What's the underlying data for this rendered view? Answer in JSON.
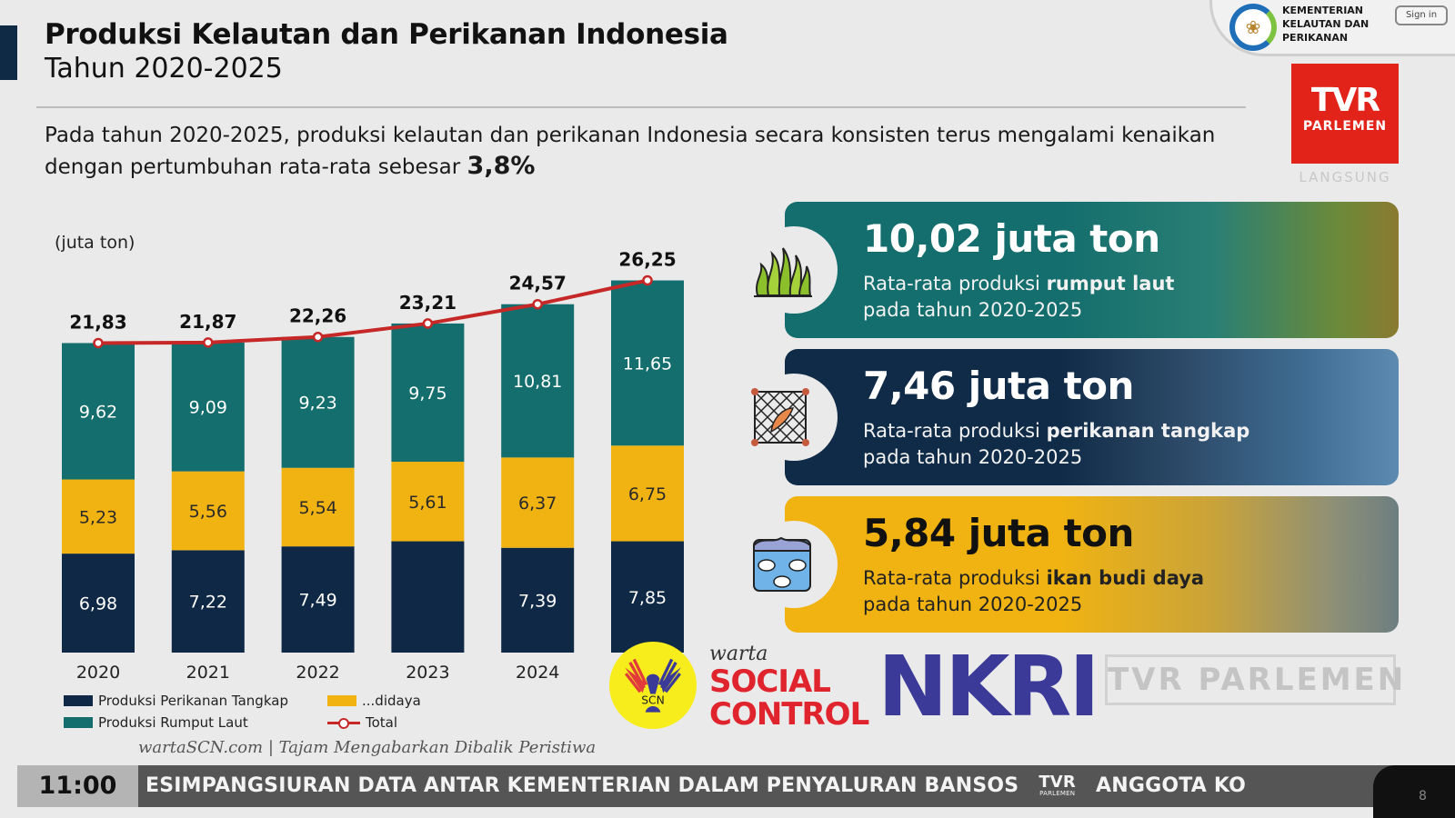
{
  "header": {
    "title": "Produksi Kelautan dan Perikanan Indonesia",
    "subtitle": "Tahun 2020-2025",
    "ministry_name": "KEMENTERIAN KELAUTAN DAN PERIKANAN",
    "sign_in": "Sign in"
  },
  "broadcaster": {
    "logo_main": "TVR",
    "logo_sub": "PARLEMEN",
    "live": "LANGSUNG"
  },
  "description": {
    "text": "Pada tahun 2020-2025, produksi kelautan dan perikanan Indonesia secara konsisten terus mengalami kenaikan dengan pertumbuhan rata-rata sebesar",
    "growth": "3,8%"
  },
  "chart_data": {
    "type": "bar",
    "stacked": true,
    "title": "Produksi Kelautan dan Perikanan Indonesia Tahun 2020-2025",
    "ylabel": "(juta ton)",
    "xlabel": "",
    "categories": [
      "2020",
      "2021",
      "2022",
      "2023",
      "2024",
      "2025"
    ],
    "series": [
      {
        "name": "Produksi Perikanan Tangkap",
        "color": "#0f2845",
        "values": [
          6.98,
          7.22,
          7.49,
          7.85,
          7.39,
          7.85
        ],
        "labels": [
          "6,98",
          "7,22",
          "7,49",
          "",
          "7,39",
          "7,85"
        ]
      },
      {
        "name": "Produksi Perikanan Budidaya",
        "color": "#f0b312",
        "values": [
          5.23,
          5.56,
          5.54,
          5.61,
          6.37,
          6.75
        ],
        "labels": [
          "5,23",
          "5,56",
          "5,54",
          "5,61",
          "6,37",
          "6,75"
        ]
      },
      {
        "name": "Produksi Rumput Laut",
        "color": "#146e6d",
        "values": [
          9.62,
          9.09,
          9.23,
          9.75,
          10.81,
          11.65
        ],
        "labels": [
          "9,62",
          "9,09",
          "9,23",
          "9,75",
          "10,81",
          "11,65"
        ]
      }
    ],
    "total": {
      "name": "Total",
      "color": "#c62828",
      "values": [
        21.83,
        21.87,
        22.26,
        23.21,
        24.57,
        26.25
      ],
      "labels": [
        "21,83",
        "21,87",
        "22,26",
        "23,21",
        "24,57",
        "26,25"
      ]
    },
    "ylim": [
      0,
      27
    ],
    "grid": false,
    "legend_position": "bottom",
    "legend": [
      "Produksi Perikanan Tangkap",
      "Produksi Perikanan Budidaya",
      "Produksi Rumput Laut",
      "Total"
    ],
    "legend_visible_text": [
      "Produksi Perikanan Tangkap",
      "...didaya",
      "Produksi Rumput Laut",
      "Total"
    ]
  },
  "stats": [
    {
      "value": "10,02 juta ton",
      "caption_pre": "Rata-rata produksi ",
      "caption_bold": "rumput laut",
      "caption_post": "pada tahun 2020-2025",
      "icon": "seaweed-icon"
    },
    {
      "value": "7,46 juta ton",
      "caption_pre": "Rata-rata produksi ",
      "caption_bold": "perikanan tangkap",
      "caption_post": "pada tahun 2020-2025",
      "icon": "fishing-net-icon"
    },
    {
      "value": "5,84 juta ton",
      "caption_pre": "Rata-rata produksi ",
      "caption_bold": "ikan budi daya",
      "caption_post": "pada tahun 2020-2025",
      "icon": "fish-pond-icon"
    }
  ],
  "watermark": {
    "warta": "warta",
    "social": "SOCIAL",
    "control": "CONTROL",
    "nkri": "NKRI",
    "scn": "SCN",
    "site": "wartaSCN.com | Tajam Mengabarkan Dibalik Peristiwa",
    "tvr_ghost": "TVR PARLEMEN"
  },
  "ticker": {
    "time": "11:00",
    "headline_1": "ESIMPANGSIURAN DATA ANTAR KEMENTERIAN DALAM PENYALURAN BANSOS",
    "logo": "TVR",
    "logo_sub": "PARLEMEN",
    "headline_2": "ANGGOTA KO",
    "page_number": "8"
  }
}
